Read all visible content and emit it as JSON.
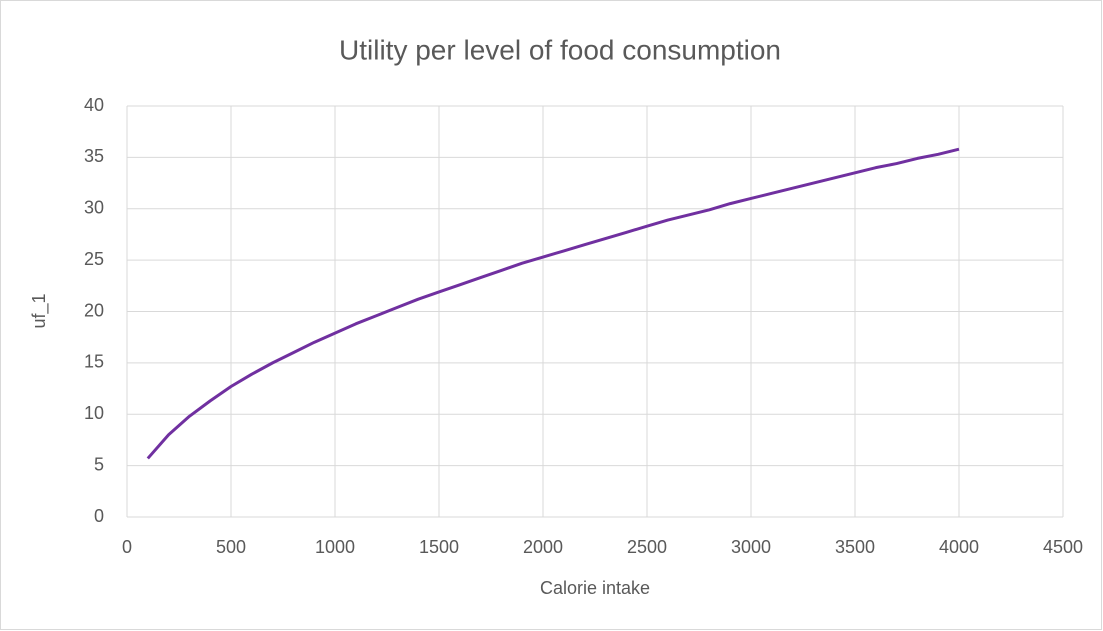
{
  "chart_data": {
    "type": "line",
    "title": "Utility per level of food consumption",
    "xlabel": "Calorie intake",
    "ylabel": "uf_1",
    "x": [
      100,
      200,
      300,
      400,
      500,
      600,
      700,
      800,
      900,
      1000,
      1100,
      1200,
      1300,
      1400,
      1500,
      1600,
      1700,
      1800,
      1900,
      2000,
      2100,
      2200,
      2300,
      2400,
      2500,
      2600,
      2700,
      2800,
      2900,
      3000,
      3100,
      3200,
      3300,
      3400,
      3500,
      3600,
      3700,
      3800,
      3900,
      4000
    ],
    "series": [
      {
        "name": "uf_1",
        "color": "#7030a0",
        "values": [
          5.7,
          8.0,
          9.8,
          11.3,
          12.7,
          13.9,
          15.0,
          16.0,
          17.0,
          17.9,
          18.8,
          19.6,
          20.4,
          21.2,
          21.9,
          22.6,
          23.3,
          24.0,
          24.7,
          25.3,
          25.9,
          26.5,
          27.1,
          27.7,
          28.3,
          28.9,
          29.4,
          29.9,
          30.5,
          31.0,
          31.5,
          32.0,
          32.5,
          33.0,
          33.5,
          34.0,
          34.4,
          34.9,
          35.3,
          35.8
        ]
      }
    ],
    "xlim": [
      0,
      4500
    ],
    "xticks": [
      0,
      500,
      1000,
      1500,
      2000,
      2500,
      3000,
      3500,
      4000,
      4500
    ],
    "ylim": [
      0,
      40
    ],
    "yticks": [
      0,
      5,
      10,
      15,
      20,
      25,
      30,
      35,
      40
    ],
    "grid": true
  }
}
